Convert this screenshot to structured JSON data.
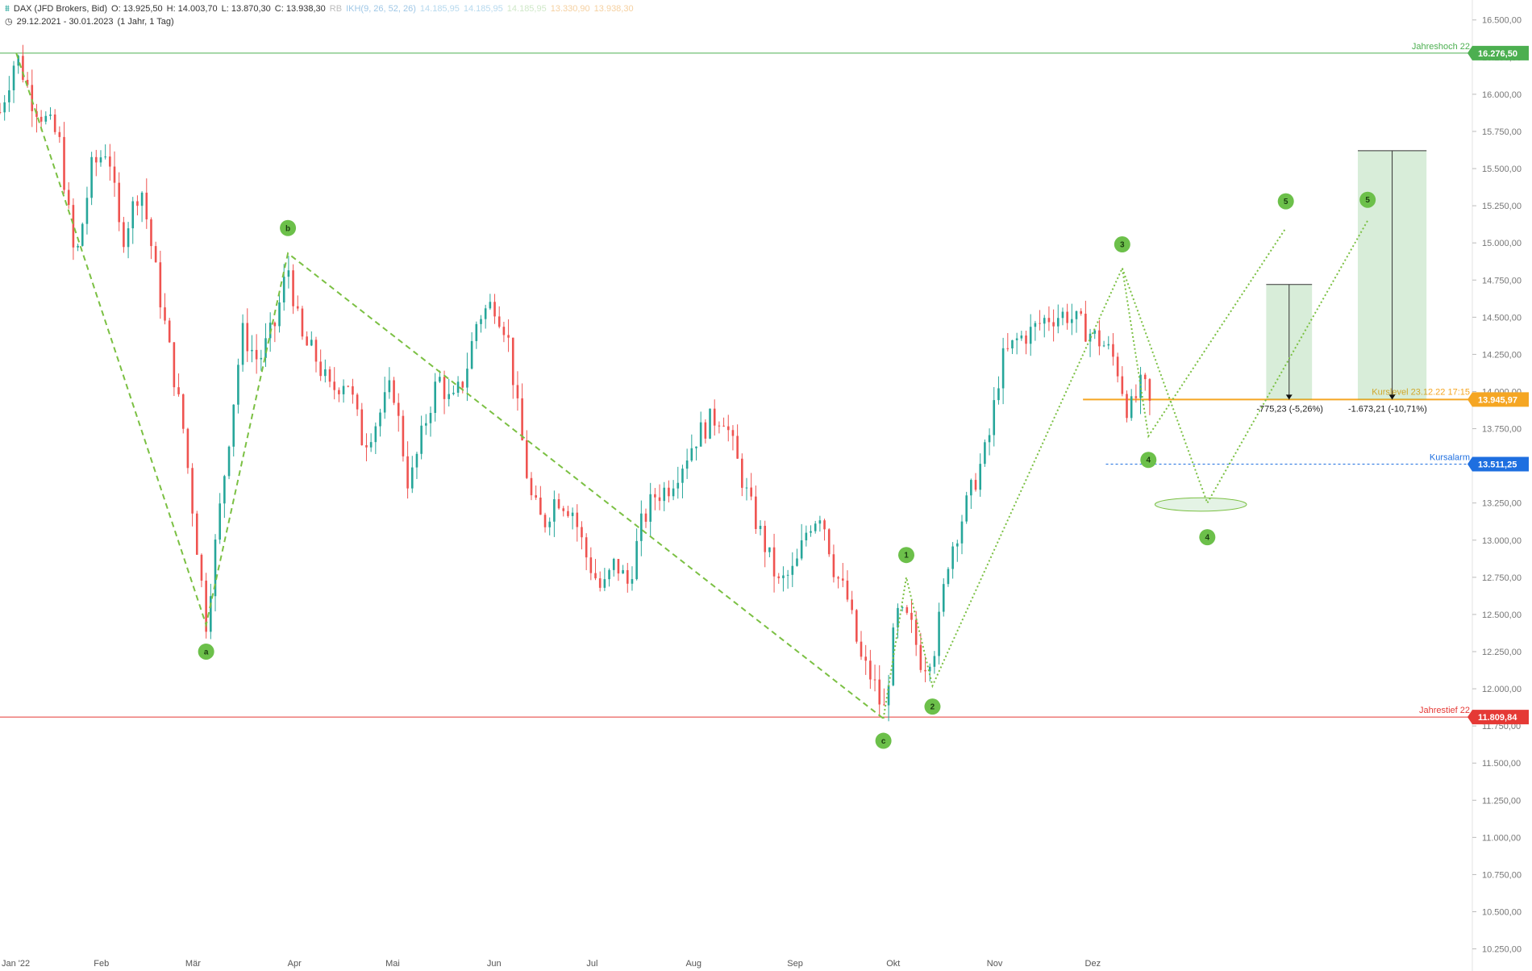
{
  "header": {
    "instrument": "DAX (JFD Brokers, Bid)",
    "open": "O: 13.925,50",
    "high": "H: 14.003,70",
    "low": "L: 13.870,30",
    "close": "C: 13.938,30",
    "indicator": "RB",
    "indicator2": "IKH(9, 26, 52, 26)",
    "ind_vals": [
      "14.185,95",
      "14.185,95",
      "14.185,95",
      "13.330,90",
      "13.938,30"
    ],
    "range": "29.12.2021 - 30.01.2023",
    "range_note": "(1 Jahr, 1 Tag)"
  },
  "colors": {
    "up": "#26a69a",
    "down": "#ef5350",
    "wave": "#7bc043",
    "high_line": "#4caf50",
    "low_line": "#e53935",
    "alarm": "#1e6fe0",
    "kurslevel": "#f5a623"
  },
  "chart_data": {
    "type": "candlestick",
    "y_ticks": [
      10250,
      10500,
      10750,
      11000,
      11250,
      11500,
      11750,
      12000,
      12250,
      12500,
      12750,
      13000,
      13250,
      13500,
      13750,
      14000,
      14250,
      14500,
      14750,
      15000,
      15250,
      15500,
      15750,
      16000,
      16250,
      16500
    ],
    "y_tick_labels": [
      "10.250,00",
      "10.500,00",
      "10.750,00",
      "11.000,00",
      "11.250,00",
      "11.500,00",
      "11.750,00",
      "12.000,00",
      "12.250,00",
      "12.500,00",
      "12.750,00",
      "13.000,00",
      "13.250,00",
      "13.500,00",
      "13.750,00",
      "14.000,00",
      "14.250,00",
      "14.500,00",
      "14.750,00",
      "15.000,00",
      "15.250,00",
      "15.500,00",
      "15.750,00",
      "16.000,00",
      "16.250,00",
      "16.500,00"
    ],
    "ylim": [
      10150,
      16580
    ],
    "x_months": [
      {
        "label": "Jan '22",
        "day": 0
      },
      {
        "label": "Feb",
        "day": 31
      },
      {
        "label": "Mär",
        "day": 59
      },
      {
        "label": "Apr",
        "day": 90
      },
      {
        "label": "Mai",
        "day": 120
      },
      {
        "label": "Jun",
        "day": 151
      },
      {
        "label": "Jul",
        "day": 181
      },
      {
        "label": "Aug",
        "day": 212
      },
      {
        "label": "Sep",
        "day": 243
      },
      {
        "label": "Okt",
        "day": 273
      },
      {
        "label": "Nov",
        "day": 304
      },
      {
        "label": "Dez",
        "day": 334
      }
    ],
    "xlim": [
      0,
      450
    ],
    "price_path": [
      [
        0,
        15880
      ],
      [
        5,
        16270
      ],
      [
        10,
        15950
      ],
      [
        18,
        15700
      ],
      [
        23,
        14850
      ],
      [
        28,
        15500
      ],
      [
        33,
        15650
      ],
      [
        37,
        15000
      ],
      [
        43,
        15400
      ],
      [
        48,
        14750
      ],
      [
        52,
        14250
      ],
      [
        56,
        13750
      ],
      [
        60,
        13000
      ],
      [
        63,
        12450
      ],
      [
        66,
        13000
      ],
      [
        70,
        13700
      ],
      [
        74,
        14400
      ],
      [
        79,
        14200
      ],
      [
        84,
        14450
      ],
      [
        88,
        14850
      ],
      [
        92,
        14350
      ],
      [
        96,
        14250
      ],
      [
        101,
        14000
      ],
      [
        106,
        14100
      ],
      [
        111,
        13650
      ],
      [
        115,
        13800
      ],
      [
        120,
        14050
      ],
      [
        125,
        13350
      ],
      [
        130,
        13800
      ],
      [
        134,
        14100
      ],
      [
        138,
        13900
      ],
      [
        142,
        14100
      ],
      [
        146,
        14500
      ],
      [
        151,
        14600
      ],
      [
        155,
        14400
      ],
      [
        158,
        13900
      ],
      [
        162,
        13300
      ],
      [
        166,
        13100
      ],
      [
        170,
        13300
      ],
      [
        175,
        13200
      ],
      [
        179,
        12900
      ],
      [
        184,
        12650
      ],
      [
        188,
        12850
      ],
      [
        192,
        12700
      ],
      [
        196,
        13100
      ],
      [
        200,
        13300
      ],
      [
        204,
        13350
      ],
      [
        208,
        13500
      ],
      [
        213,
        13700
      ],
      [
        217,
        13800
      ],
      [
        221,
        13850
      ],
      [
        225,
        13550
      ],
      [
        229,
        13250
      ],
      [
        234,
        12950
      ],
      [
        238,
        12700
      ],
      [
        243,
        12800
      ],
      [
        247,
        13100
      ],
      [
        251,
        13200
      ],
      [
        255,
        12800
      ],
      [
        259,
        12600
      ],
      [
        263,
        12200
      ],
      [
        267,
        12050
      ],
      [
        270,
        11820
      ],
      [
        274,
        12500
      ],
      [
        278,
        12450
      ],
      [
        282,
        12150
      ],
      [
        286,
        12300
      ],
      [
        290,
        12900
      ],
      [
        294,
        13150
      ],
      [
        298,
        13400
      ],
      [
        302,
        13650
      ],
      [
        306,
        14200
      ],
      [
        311,
        14350
      ],
      [
        315,
        14400
      ],
      [
        320,
        14500
      ],
      [
        326,
        14520
      ],
      [
        330,
        14450
      ],
      [
        334,
        14380
      ],
      [
        338,
        14300
      ],
      [
        341,
        14200
      ],
      [
        345,
        13850
      ],
      [
        349,
        14050
      ],
      [
        352,
        13938
      ]
    ],
    "levels": [
      {
        "name": "high",
        "value": 16276.5,
        "label": "Jahreshoch 22",
        "tag": "16.276,50"
      },
      {
        "name": "low",
        "value": 11809.84,
        "label": "Jahrestief 22",
        "tag": "11.809,84"
      },
      {
        "name": "alarm",
        "value": 13511.25,
        "label": "Kursalarm",
        "tag": "13.511,25"
      },
      {
        "name": "kurslevel",
        "value": 13945.97,
        "label": "Kurslevel 23.12.22 17:15",
        "tag": "13.945,97"
      }
    ],
    "abc_waves": [
      {
        "label": "a",
        "day": 63,
        "value": 12430,
        "label_value": 12250
      },
      {
        "label": "b",
        "day": 88,
        "value": 14930,
        "label_value": 15100
      },
      {
        "label": "c",
        "day": 270,
        "value": 11800,
        "label_value": 11650
      }
    ],
    "start_point": {
      "day": 5,
      "value": 16276
    },
    "impulse_waves": [
      {
        "label": "1",
        "day": 277,
        "value": 12750,
        "label_value": 12900
      },
      {
        "label": "2",
        "day": 285,
        "value": 12020,
        "label_value": 11880
      },
      {
        "label": "3",
        "day": 343,
        "value": 14830,
        "label_value": 14990
      },
      {
        "label": "4",
        "day": 351,
        "value": 13700,
        "label_value": 13540
      },
      {
        "label": "5",
        "day": 393,
        "value": 15100,
        "label_value": 15280
      }
    ],
    "alt_waves": [
      {
        "label": "4",
        "day": 369,
        "value": 13250,
        "label_value": 13020
      },
      {
        "label": "5",
        "day": 418,
        "value": 15150,
        "label_value": 15290
      }
    ],
    "target_boxes": [
      {
        "day_from": 387,
        "day_to": 401,
        "top": 14720,
        "bottom": 13946,
        "label": "-775,23 (-5,26%)"
      },
      {
        "day_from": 415,
        "day_to": 436,
        "top": 15620,
        "bottom": 13946,
        "label": "-1.673,21 (-10,71%)"
      }
    ],
    "target_ellipse": {
      "day": 367,
      "value": 13240,
      "day_radius": 14,
      "value_radius": 45
    }
  }
}
